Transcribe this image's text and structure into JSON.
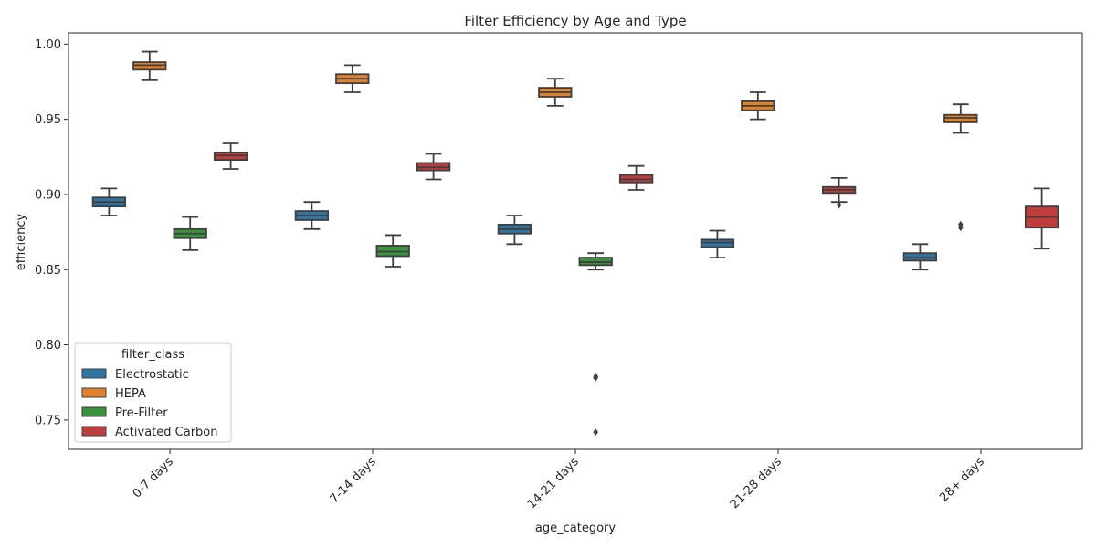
{
  "chart_data": {
    "type": "box",
    "title": "Filter Efficiency by Age and Type",
    "xlabel": "age_category",
    "ylabel": "efficiency",
    "ylim": [
      0.7305,
      1.0075
    ],
    "yticks": [
      "0.75",
      "0.80",
      "0.85",
      "0.90",
      "0.95",
      "1.00"
    ],
    "ytick_values": [
      0.75,
      0.8,
      0.85,
      0.9,
      0.95,
      1.0
    ],
    "categories": [
      "0-7 days",
      "7-14 days",
      "14-21 days",
      "21-28 days",
      "28+ days"
    ],
    "grid": false,
    "legend": {
      "title": "filter_class",
      "position": "lower-left"
    },
    "series": [
      {
        "name": "Electrostatic",
        "color": "#3274a1",
        "boxes": [
          {
            "whisker_low": 0.886,
            "q1": 0.892,
            "median": 0.895,
            "q3": 0.898,
            "whisker_high": 0.904,
            "outliers": []
          },
          {
            "whisker_low": 0.877,
            "q1": 0.883,
            "median": 0.886,
            "q3": 0.889,
            "whisker_high": 0.895,
            "outliers": []
          },
          {
            "whisker_low": 0.867,
            "q1": 0.874,
            "median": 0.877,
            "q3": 0.88,
            "whisker_high": 0.886,
            "outliers": []
          },
          {
            "whisker_low": 0.858,
            "q1": 0.865,
            "median": 0.868,
            "q3": 0.87,
            "whisker_high": 0.876,
            "outliers": []
          },
          {
            "whisker_low": 0.85,
            "q1": 0.856,
            "median": 0.858,
            "q3": 0.861,
            "whisker_high": 0.867,
            "outliers": []
          }
        ]
      },
      {
        "name": "HEPA",
        "color": "#e1812c",
        "boxes": [
          {
            "whisker_low": 0.976,
            "q1": 0.983,
            "median": 0.986,
            "q3": 0.988,
            "whisker_high": 0.995,
            "outliers": []
          },
          {
            "whisker_low": 0.968,
            "q1": 0.974,
            "median": 0.977,
            "q3": 0.98,
            "whisker_high": 0.986,
            "outliers": []
          },
          {
            "whisker_low": 0.959,
            "q1": 0.965,
            "median": 0.968,
            "q3": 0.971,
            "whisker_high": 0.977,
            "outliers": []
          },
          {
            "whisker_low": 0.95,
            "q1": 0.956,
            "median": 0.959,
            "q3": 0.962,
            "whisker_high": 0.968,
            "outliers": []
          },
          {
            "whisker_low": 0.941,
            "q1": 0.948,
            "median": 0.951,
            "q3": 0.953,
            "whisker_high": 0.96,
            "outliers": [
              0.88,
              0.878
            ]
          }
        ]
      },
      {
        "name": "Pre-Filter",
        "color": "#3a923a",
        "boxes": [
          {
            "whisker_low": 0.863,
            "q1": 0.871,
            "median": 0.874,
            "q3": 0.877,
            "whisker_high": 0.885,
            "outliers": []
          },
          {
            "whisker_low": 0.852,
            "q1": 0.859,
            "median": 0.862,
            "q3": 0.866,
            "whisker_high": 0.873,
            "outliers": []
          },
          {
            "whisker_low": 0.85,
            "q1": 0.853,
            "median": 0.855,
            "q3": 0.858,
            "whisker_high": 0.861,
            "outliers": [
              0.779,
              0.778,
              0.742
            ]
          },
          null,
          null
        ]
      },
      {
        "name": "Activated Carbon",
        "color": "#c03d3e",
        "boxes": [
          {
            "whisker_low": 0.917,
            "q1": 0.923,
            "median": 0.926,
            "q3": 0.928,
            "whisker_high": 0.934,
            "outliers": []
          },
          {
            "whisker_low": 0.91,
            "q1": 0.916,
            "median": 0.918,
            "q3": 0.921,
            "whisker_high": 0.927,
            "outliers": []
          },
          {
            "whisker_low": 0.903,
            "q1": 0.908,
            "median": 0.91,
            "q3": 0.913,
            "whisker_high": 0.919,
            "outliers": []
          },
          {
            "whisker_low": 0.895,
            "q1": 0.901,
            "median": 0.903,
            "q3": 0.905,
            "whisker_high": 0.911,
            "outliers": [
              0.893
            ]
          },
          {
            "whisker_low": 0.864,
            "q1": 0.878,
            "median": 0.885,
            "q3": 0.892,
            "whisker_high": 0.904,
            "outliers": []
          }
        ]
      }
    ]
  }
}
